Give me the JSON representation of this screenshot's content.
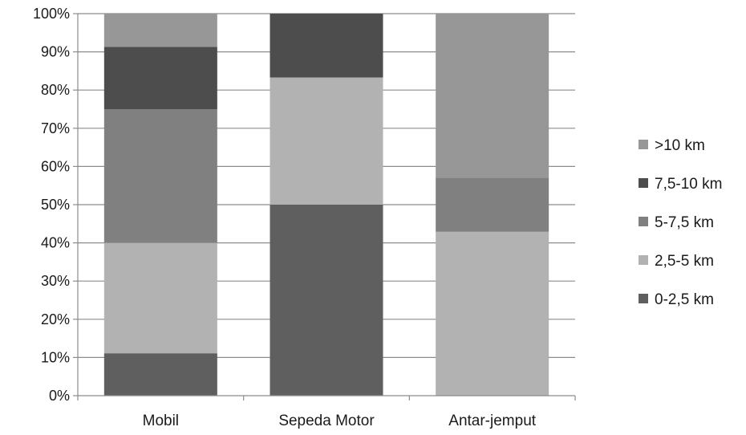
{
  "chart_data": {
    "type": "bar",
    "stacked": true,
    "normalized": true,
    "title": "",
    "xlabel": "",
    "ylabel": "",
    "ylim": [
      0,
      100
    ],
    "yticks": [
      "0%",
      "10%",
      "20%",
      "30%",
      "40%",
      "50%",
      "60%",
      "70%",
      "80%",
      "90%",
      "100%"
    ],
    "categories": [
      "Mobil",
      "Sepeda Motor",
      "Antar-jemput"
    ],
    "series": [
      {
        "name": "0-2,5 km",
        "color": "#5f5f5f",
        "values": [
          11.1,
          50.0,
          0.0
        ]
      },
      {
        "name": "2,5-5 km",
        "color": "#b2b2b2",
        "values": [
          28.9,
          33.3,
          42.9
        ]
      },
      {
        "name": "5-7,5 km",
        "color": "#808080",
        "values": [
          35.0,
          0.0,
          14.2
        ]
      },
      {
        "name": "7,5-10 km",
        "color": "#4d4d4d",
        "values": [
          16.3,
          16.7,
          0.0
        ]
      },
      {
        "name": ">10 km",
        "color": "#979797",
        "values": [
          8.7,
          0.0,
          42.9
        ]
      }
    ],
    "legend_position": "right",
    "grid": true
  }
}
